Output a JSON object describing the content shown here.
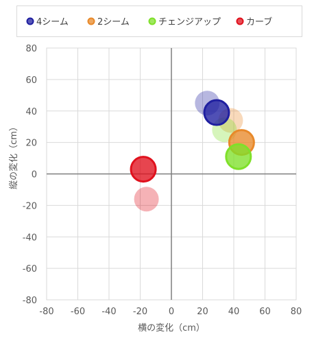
{
  "chart_data": {
    "type": "scatter",
    "title": "",
    "xlabel": "横の変化（cm）",
    "ylabel": "縦の変化（cm）",
    "xlim": [
      -80,
      80
    ],
    "ylim": [
      -80,
      80
    ],
    "xticks": [
      -80,
      -60,
      -40,
      -20,
      0,
      20,
      40,
      60,
      80
    ],
    "yticks": [
      -80,
      -60,
      -40,
      -20,
      0,
      20,
      40,
      60,
      80
    ],
    "grid": true,
    "legend_position": "top",
    "series": [
      {
        "name": "4シーム",
        "color": "#1f1fa0",
        "points": [
          {
            "x": 23,
            "y": 45,
            "emphasis": false
          },
          {
            "x": 29,
            "y": 39,
            "emphasis": true
          }
        ]
      },
      {
        "name": "2シーム",
        "color": "#e8892a",
        "points": [
          {
            "x": 38,
            "y": 34,
            "emphasis": false
          },
          {
            "x": 45,
            "y": 20,
            "emphasis": true
          }
        ]
      },
      {
        "name": "チェンジアップ",
        "color": "#7fe02a",
        "points": [
          {
            "x": 34,
            "y": 28,
            "emphasis": false
          },
          {
            "x": 43,
            "y": 11,
            "emphasis": true
          }
        ]
      },
      {
        "name": "カーブ",
        "color": "#e0111d",
        "points": [
          {
            "x": -16,
            "y": -16,
            "emphasis": false
          },
          {
            "x": -18,
            "y": 3,
            "emphasis": true
          }
        ]
      }
    ]
  }
}
